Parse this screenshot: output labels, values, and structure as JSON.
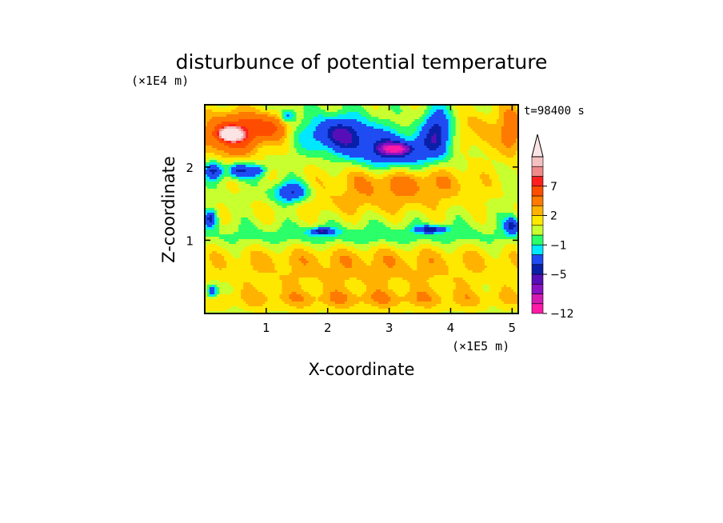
{
  "chart_data": {
    "type": "heatmap",
    "title": "disturbunce of potential temperature",
    "time_label": "t=98400 s",
    "xlabel": "X-coordinate",
    "ylabel": "Z-coordinate",
    "x_scale_label": "(×1E5 m)",
    "y_scale_label": "(×1E4 m)",
    "xlim": [
      0,
      5.1
    ],
    "ylim": [
      0,
      2.85
    ],
    "x_ticks": [
      1,
      2,
      3,
      4,
      5
    ],
    "y_ticks": [
      1,
      2
    ],
    "x_tick_labels": [
      "1",
      "2",
      "3",
      "4",
      "5"
    ],
    "y_tick_labels": [
      "1",
      "2"
    ],
    "colorbar": {
      "boundary_labels": [
        "−12",
        "−5",
        "−1",
        "2",
        "7"
      ],
      "colors": [
        "#ff1aa8",
        "#d41ab2",
        "#8a12c2",
        "#560fb8",
        "#0a1fa8",
        "#1f4cf2",
        "#00e8ff",
        "#2bff6a",
        "#c8ff2e",
        "#ffe800",
        "#ffb300",
        "#ff7a00",
        "#ff4d00",
        "#ff1f1f",
        "#f08a8a",
        "#f5c0c0"
      ],
      "extend_top_color": "#fde4e4"
    },
    "fields": [
      {
        "x": 0.45,
        "z": 2.45,
        "rx": 0.5,
        "rz": 0.28,
        "v": 6.5
      },
      {
        "x": 0.42,
        "z": 2.45,
        "rx": 0.18,
        "rz": 0.08,
        "v": 8.5
      },
      {
        "x": 1.05,
        "z": 2.55,
        "rx": 0.35,
        "rz": 0.18,
        "v": 4
      },
      {
        "x": 1.35,
        "z": 2.7,
        "rx": 0.12,
        "rz": 0.1,
        "v": -4
      },
      {
        "x": 2.2,
        "z": 2.45,
        "rx": 0.55,
        "rz": 0.25,
        "v": -5.5
      },
      {
        "x": 3.1,
        "z": 2.2,
        "rx": 0.65,
        "rz": 0.25,
        "v": -5.5
      },
      {
        "x": 3.1,
        "z": 2.25,
        "rx": 0.2,
        "rz": 0.06,
        "v": -8
      },
      {
        "x": 3.8,
        "z": 2.5,
        "rx": 0.25,
        "rz": 0.3,
        "v": -5
      },
      {
        "x": 4.4,
        "z": 2.5,
        "rx": 0.35,
        "rz": 0.3,
        "v": 2
      },
      {
        "x": 5.0,
        "z": 2.5,
        "rx": 0.2,
        "rz": 0.35,
        "v": 4
      },
      {
        "x": 0.15,
        "z": 1.95,
        "rx": 0.15,
        "rz": 0.12,
        "v": -5
      },
      {
        "x": 0.55,
        "z": 1.95,
        "rx": 0.18,
        "rz": 0.1,
        "v": -5
      },
      {
        "x": 0.85,
        "z": 1.95,
        "rx": 0.15,
        "rz": 0.08,
        "v": -4
      },
      {
        "x": 1.4,
        "z": 1.65,
        "rx": 0.3,
        "rz": 0.15,
        "v": -5
      },
      {
        "x": 3.2,
        "z": 1.8,
        "rx": 1.2,
        "rz": 0.25,
        "v": 3
      },
      {
        "x": 2.6,
        "z": 1.5,
        "rx": 1.5,
        "rz": 0.18,
        "v": 1.2
      },
      {
        "x": 1.0,
        "z": 1.35,
        "rx": 1.1,
        "rz": 0.15,
        "v": 0.2
      },
      {
        "x": 0.1,
        "z": 1.3,
        "rx": 0.1,
        "rz": 0.12,
        "v": -5
      },
      {
        "x": 5.0,
        "z": 1.2,
        "rx": 0.12,
        "rz": 0.12,
        "v": -5
      },
      {
        "x": 2.55,
        "z": 1.05,
        "rx": 3.0,
        "rz": 0.16,
        "v": -1.6
      },
      {
        "x": 1.9,
        "z": 1.12,
        "rx": 0.2,
        "rz": 0.05,
        "v": -5
      },
      {
        "x": 3.7,
        "z": 1.15,
        "rx": 0.25,
        "rz": 0.05,
        "v": -5
      },
      {
        "x": 2.6,
        "z": 0.7,
        "rx": 3.0,
        "rz": 0.28,
        "v": 2
      },
      {
        "x": 2.6,
        "z": 0.45,
        "rx": 3.0,
        "rz": 0.12,
        "v": 0.5
      },
      {
        "x": 2.6,
        "z": 0.2,
        "rx": 3.0,
        "rz": 0.15,
        "v": 2.2
      },
      {
        "x": 0.12,
        "z": 0.3,
        "rx": 0.1,
        "rz": 0.1,
        "v": -5
      }
    ]
  }
}
